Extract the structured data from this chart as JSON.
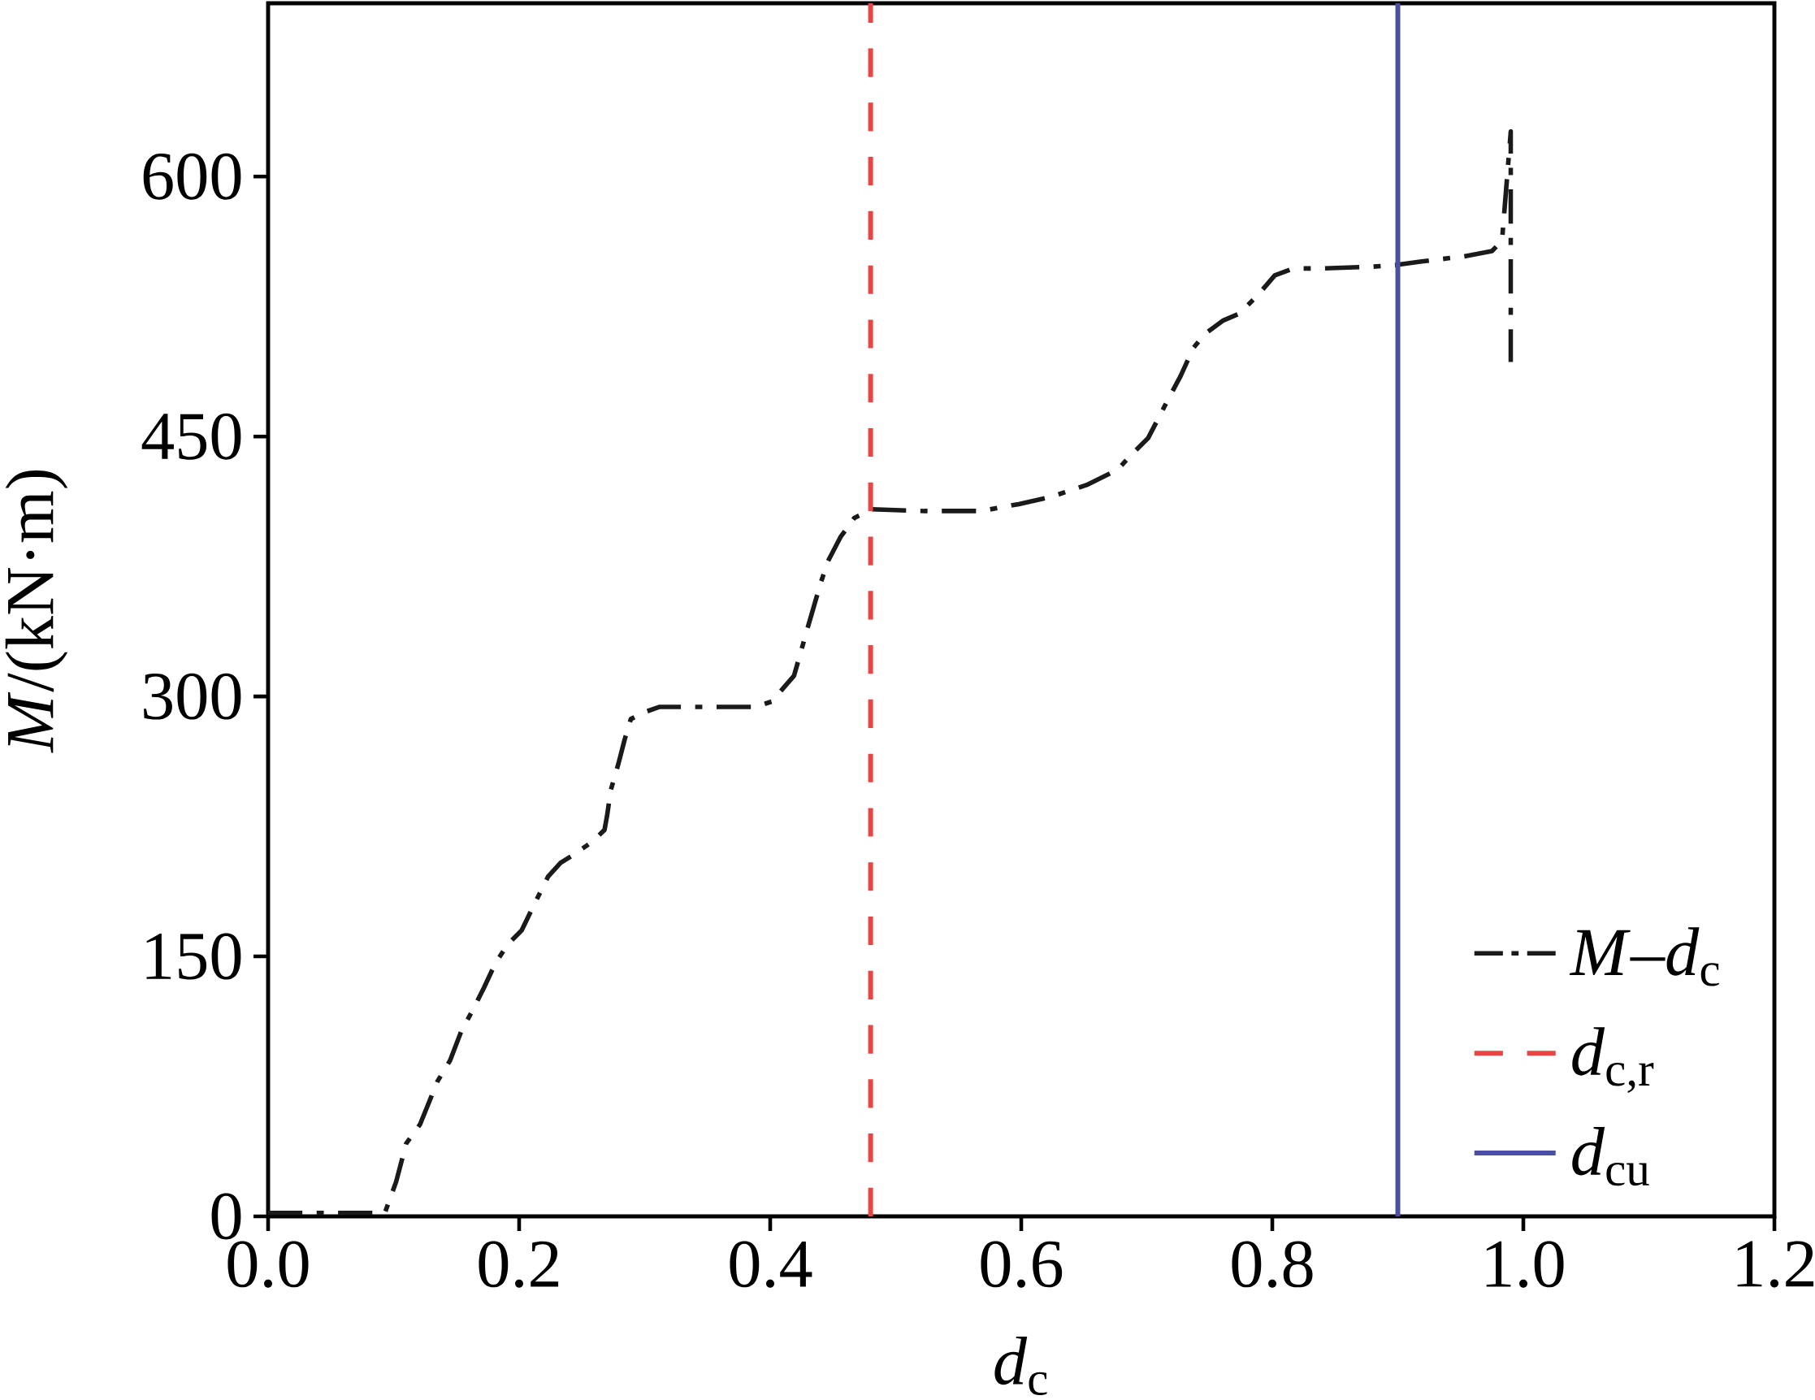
{
  "chart_data": {
    "type": "line",
    "xlabel": "*d*$_{c}$",
    "ylabel": "*M*/(kN·m)",
    "xlim": [
      0,
      1.2
    ],
    "ylim": [
      0,
      700
    ],
    "xticks": [
      {
        "value": 0,
        "label": "0.0"
      },
      0.2,
      0.4,
      0.6,
      0.8,
      {
        "value": 1,
        "label": "1.0"
      },
      1.2
    ],
    "yticks": [
      0,
      150,
      300,
      450,
      600
    ],
    "series": [
      {
        "name": "*M*–*d*$_{c}$",
        "color": "#1a1a1a",
        "line_style": "dashdot",
        "x": [
          0,
          0.093,
          0.102,
          0.11,
          0.121,
          0.135,
          0.145,
          0.154,
          0.163,
          0.172,
          0.181,
          0.191,
          0.202,
          0.212,
          0.223,
          0.233,
          0.244,
          0.258,
          0.268,
          0.27,
          0.273,
          0.279,
          0.284,
          0.289,
          0.3,
          0.312,
          0.331,
          0.359,
          0.388,
          0.401,
          0.419,
          0.43,
          0.44,
          0.446,
          0.456,
          0.467,
          0.481,
          0.523,
          0.568,
          0.598,
          0.623,
          0.652,
          0.677,
          0.687,
          0.701,
          0.716,
          0.727,
          0.737,
          0.746,
          0.761,
          0.774,
          0.789,
          0.802,
          0.817,
          0.841,
          0.88,
          0.899,
          0.919,
          0.953,
          0.975,
          0.983,
          0.99,
          0.99
        ],
        "values": [
          2,
          2,
          20,
          42,
          53,
          78,
          90,
          107,
          119,
          132,
          146,
          157,
          165,
          180,
          196,
          204,
          209,
          216,
          223,
          231,
          246,
          261,
          275,
          287,
          291,
          294,
          294,
          294,
          294,
          297,
          312,
          340,
          365,
          378,
          392,
          403,
          408,
          407,
          407,
          411,
          415,
          422,
          431,
          439,
          449,
          470,
          485,
          501,
          509,
          517,
          521,
          532,
          543,
          547,
          547,
          548,
          549,
          551,
          554,
          557,
          563,
          626,
          493
        ]
      },
      {
        "name": "*d*$_{c,r}$",
        "color": "#e84545",
        "line_style": "dashed",
        "x": [
          0.48,
          0.48
        ],
        "values": [
          0,
          700
        ]
      },
      {
        "name": "*d*$_{cu}$",
        "color": "#4b4f9f",
        "line_style": "solid",
        "x": [
          0.9,
          0.9
        ],
        "values": [
          0,
          700
        ]
      }
    ],
    "legend": "bottom right"
  }
}
